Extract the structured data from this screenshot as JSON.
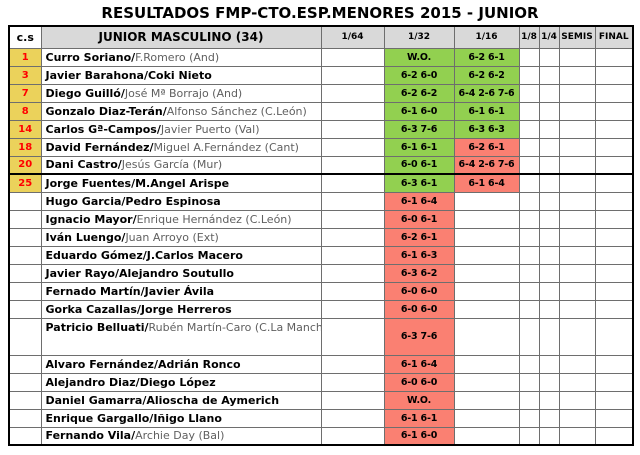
{
  "title": "RESULTADOS FMP-CTO.ESP.MENORES 2015 - JUNIOR",
  "table": {
    "headers": {
      "seed": "c.s",
      "players": "JUNIOR MASCULINO (34)",
      "rounds": [
        "1/64",
        "1/32",
        "1/16",
        "1/8",
        "1/4",
        "SEMIS",
        "FINAL"
      ]
    },
    "colors": {
      "win": "#92D050",
      "loss": "#FA8072",
      "seed_bg": "#EBD25B",
      "seed_text": "#FF0000",
      "header_bg": "#D9D9D9"
    },
    "rows": [
      {
        "seed": "1",
        "p1": "Curro Soriano/",
        "p2": "F.Romero (And)",
        "r64": "",
        "r32": "W.O.",
        "r32s": "win",
        "r16": "6-2 6-1",
        "r16s": "win",
        "r8": "",
        "r4": "",
        "semis": "",
        "final": "",
        "thick_below": false,
        "tall": false
      },
      {
        "seed": "3",
        "p1": "Javier Barahona/Coki Nieto",
        "p2": "",
        "r64": "",
        "r32": "6-2 6-0",
        "r32s": "win",
        "r16": "6-2 6-2",
        "r16s": "win",
        "r8": "",
        "r4": "",
        "semis": "",
        "final": "",
        "thick_below": false,
        "tall": false
      },
      {
        "seed": "7",
        "p1": "Diego Guilló/",
        "p2": "José Mª Borrajo (And)",
        "r64": "",
        "r32": "6-2 6-2",
        "r32s": "win",
        "r16": "6-4 2-6 7-6",
        "r16s": "win",
        "r8": "",
        "r4": "",
        "semis": "",
        "final": "",
        "thick_below": false,
        "tall": false
      },
      {
        "seed": "8",
        "p1": "Gonzalo Diaz-Terán/",
        "p2": "Alfonso Sánchez (C.León)",
        "r64": "",
        "r32": "6-1 6-0",
        "r32s": "win",
        "r16": "6-1 6-1",
        "r16s": "win",
        "r8": "",
        "r4": "",
        "semis": "",
        "final": "",
        "thick_below": false,
        "tall": false
      },
      {
        "seed": "14",
        "p1": "Carlos Gª-Campos/",
        "p2": "Javier Puerto (Val)",
        "r64": "",
        "r32": "6-3 7-6",
        "r32s": "win",
        "r16": "6-3 6-3",
        "r16s": "win",
        "r8": "",
        "r4": "",
        "semis": "",
        "final": "",
        "thick_below": false,
        "tall": false
      },
      {
        "seed": "18",
        "p1": "David Fernández/",
        "p2": "Miguel A.Fernández (Cant)",
        "r64": "",
        "r32": "6-1 6-1",
        "r32s": "win",
        "r16": "6-2 6-1",
        "r16s": "loss",
        "r8": "",
        "r4": "",
        "semis": "",
        "final": "",
        "thick_below": false,
        "tall": false
      },
      {
        "seed": "20",
        "p1": "Dani Castro/",
        "p2": "Jesús García (Mur)",
        "r64": "",
        "r32": "6-0 6-1",
        "r32s": "win",
        "r16": "6-4 2-6 7-6",
        "r16s": "loss",
        "r8": "",
        "r4": "",
        "semis": "",
        "final": "",
        "thick_below": true,
        "tall": false
      },
      {
        "seed": "25",
        "p1": "Jorge Fuentes/M.Angel Arispe",
        "p2": "",
        "r64": "",
        "r32": "6-3 6-1",
        "r32s": "win",
        "r16": "6-1 6-4",
        "r16s": "loss",
        "r8": "",
        "r4": "",
        "semis": "",
        "final": "",
        "thick_below": false,
        "tall": false
      },
      {
        "seed": "",
        "p1": "Hugo Garcia/Pedro Espinosa",
        "p2": "",
        "r64": "",
        "r32": "6-1 6-4",
        "r32s": "loss",
        "r16": "",
        "r16s": "",
        "r8": "",
        "r4": "",
        "semis": "",
        "final": "",
        "thick_below": false,
        "tall": false
      },
      {
        "seed": "",
        "p1": "Ignacio Mayor/",
        "p2": "Enrique Hernández (C.León)",
        "r64": "",
        "r32": "6-0 6-1",
        "r32s": "loss",
        "r16": "",
        "r16s": "",
        "r8": "",
        "r4": "",
        "semis": "",
        "final": "",
        "thick_below": false,
        "tall": false
      },
      {
        "seed": "",
        "p1": "Iván Luengo/",
        "p2": "Juan Arroyo (Ext)",
        "r64": "",
        "r32": "6-2 6-1",
        "r32s": "loss",
        "r16": "",
        "r16s": "",
        "r8": "",
        "r4": "",
        "semis": "",
        "final": "",
        "thick_below": false,
        "tall": false
      },
      {
        "seed": "",
        "p1": "Eduardo Gómez/J.Carlos Macero",
        "p2": "",
        "r64": "",
        "r32": "6-1 6-3",
        "r32s": "loss",
        "r16": "",
        "r16s": "",
        "r8": "",
        "r4": "",
        "semis": "",
        "final": "",
        "thick_below": false,
        "tall": false
      },
      {
        "seed": "",
        "p1": "Javier Rayo/Alejandro Soutullo",
        "p2": "",
        "r64": "",
        "r32": "6-3 6-2",
        "r32s": "loss",
        "r16": "",
        "r16s": "",
        "r8": "",
        "r4": "",
        "semis": "",
        "final": "",
        "thick_below": false,
        "tall": false
      },
      {
        "seed": "",
        "p1": "Fernado Martín/Javier Ávila",
        "p2": "",
        "r64": "",
        "r32": "6-0 6-0",
        "r32s": "loss",
        "r16": "",
        "r16s": "",
        "r8": "",
        "r4": "",
        "semis": "",
        "final": "",
        "thick_below": false,
        "tall": false
      },
      {
        "seed": "",
        "p1": "Gorka Cazallas/Jorge Herreros",
        "p2": "",
        "r64": "",
        "r32": "6-0 6-0",
        "r32s": "loss",
        "r16": "",
        "r16s": "",
        "r8": "",
        "r4": "",
        "semis": "",
        "final": "",
        "thick_below": false,
        "tall": false
      },
      {
        "seed": "",
        "p1": "Patricio Belluati/",
        "p2": "Rubén Martín-Caro (C.La Mancha)",
        "r64": "",
        "r32": "6-3 7-6",
        "r32s": "loss",
        "r16": "",
        "r16s": "",
        "r8": "",
        "r4": "",
        "semis": "",
        "final": "",
        "thick_below": false,
        "tall": true
      },
      {
        "seed": "",
        "p1": "Alvaro Fernández/Adrián Ronco",
        "p2": "",
        "r64": "",
        "r32": "6-1 6-4",
        "r32s": "loss",
        "r16": "",
        "r16s": "",
        "r8": "",
        "r4": "",
        "semis": "",
        "final": "",
        "thick_below": false,
        "tall": false
      },
      {
        "seed": "",
        "p1": "Alejandro Diaz/Diego López",
        "p2": "",
        "r64": "",
        "r32": "6-0 6-0",
        "r32s": "loss",
        "r16": "",
        "r16s": "",
        "r8": "",
        "r4": "",
        "semis": "",
        "final": "",
        "thick_below": false,
        "tall": false
      },
      {
        "seed": "",
        "p1": "Daniel Gamarra/Alioscha de Aymerich",
        "p2": "",
        "r64": "",
        "r32": "W.O.",
        "r32s": "loss",
        "r16": "",
        "r16s": "",
        "r8": "",
        "r4": "",
        "semis": "",
        "final": "",
        "thick_below": false,
        "tall": false
      },
      {
        "seed": "",
        "p1": "Enrique Gargallo/Iñigo Llano",
        "p2": "",
        "r64": "",
        "r32": "6-1 6-1",
        "r32s": "loss",
        "r16": "",
        "r16s": "",
        "r8": "",
        "r4": "",
        "semis": "",
        "final": "",
        "thick_below": false,
        "tall": false
      },
      {
        "seed": "",
        "p1": "Fernando Vila/",
        "p2": "Archie Day (Bal)",
        "r64": "",
        "r32": "6-1 6-0",
        "r32s": "loss",
        "r16": "",
        "r16s": "",
        "r8": "",
        "r4": "",
        "semis": "",
        "final": "",
        "thick_below": false,
        "tall": false
      }
    ]
  }
}
